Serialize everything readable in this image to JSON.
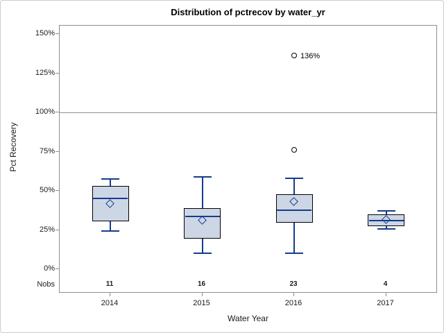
{
  "title": "Distribution of pctrecov by water_yr",
  "y_axis": {
    "label": "Pct Recovery",
    "tick_labels": [
      "150%",
      "125%",
      "100%",
      "75%",
      "50%",
      "25%",
      "0%"
    ],
    "tick_values": [
      150,
      125,
      100,
      75,
      50,
      25,
      0
    ],
    "reference_line": 100
  },
  "x_axis": {
    "label": "Water Year",
    "nobs_label": "Nobs"
  },
  "chart_data": {
    "type": "boxplot",
    "title": "Distribution of pctrecov by water_yr",
    "xlabel": "Water Year",
    "ylabel": "Pct Recovery",
    "ylim": [
      0,
      150
    ],
    "grid": false,
    "reference_line": 100,
    "categories": [
      "2014",
      "2015",
      "2016",
      "2017"
    ],
    "nobs": [
      11,
      16,
      23,
      4
    ],
    "series": [
      {
        "category": "2014",
        "n": 11,
        "whisker_low": 24.5,
        "q1": 30.5,
        "median": 45,
        "mean": 41.5,
        "q3": 53,
        "whisker_high": 57.5,
        "outliers": [],
        "outlier_labels": []
      },
      {
        "category": "2015",
        "n": 16,
        "whisker_low": 10,
        "q1": 19.5,
        "median": 33.5,
        "mean": 31,
        "q3": 39,
        "whisker_high": 59,
        "outliers": [],
        "outlier_labels": []
      },
      {
        "category": "2016",
        "n": 23,
        "whisker_low": 10,
        "q1": 29.5,
        "median": 37.5,
        "mean": 43,
        "q3": 48,
        "whisker_high": 58,
        "outliers": [
          76,
          136
        ],
        "outlier_labels": [
          "",
          "136%"
        ]
      },
      {
        "category": "2017",
        "n": 4,
        "whisker_low": 25.5,
        "q1": 27.5,
        "median": 31,
        "mean": 31.5,
        "q3": 35,
        "whisker_high": 37,
        "outliers": [],
        "outlier_labels": []
      }
    ],
    "colors": {
      "box_fill": "#cdd6e5",
      "box_border": "#000000",
      "line": "#143c8c",
      "frame": "#8f8f8f",
      "text": "#1a1a1a"
    }
  }
}
